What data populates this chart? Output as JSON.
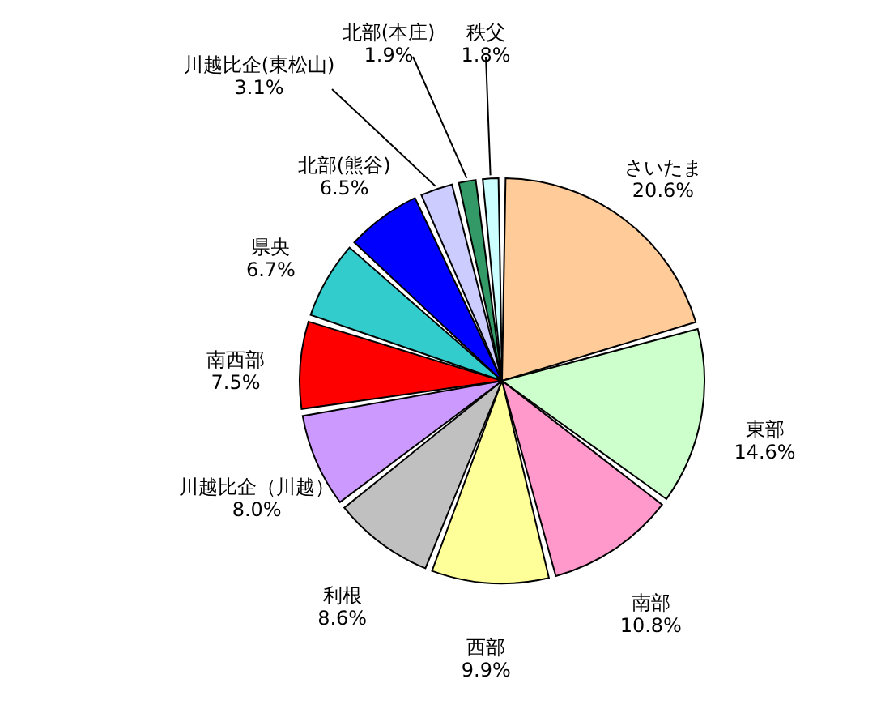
{
  "chart_data": {
    "type": "pie",
    "categories": [
      "さいたま",
      "東部",
      "南部",
      "西部",
      "利根",
      "川越比企（川越）",
      "南西部",
      "県央",
      "北部(熊谷)",
      "川越比企(東松山)",
      "北部(本庄)",
      "秩父"
    ],
    "values": [
      20.6,
      14.6,
      10.8,
      9.9,
      8.6,
      8.0,
      7.5,
      6.7,
      6.5,
      3.1,
      1.9,
      1.8
    ],
    "value_labels": [
      "20.6%",
      "14.6%",
      "10.8%",
      "9.9%",
      "8.6%",
      "8.0%",
      "7.5%",
      "6.7%",
      "6.5%",
      "3.1%",
      "1.9%",
      "1.8%"
    ],
    "colors": [
      "#ffcc99",
      "#ccffcc",
      "#ff99cc",
      "#ffff99",
      "#c0c0c0",
      "#cc99ff",
      "#ff0000",
      "#33cccc",
      "#0000ff",
      "#ccccff",
      "#339966",
      "#ccffff"
    ]
  }
}
